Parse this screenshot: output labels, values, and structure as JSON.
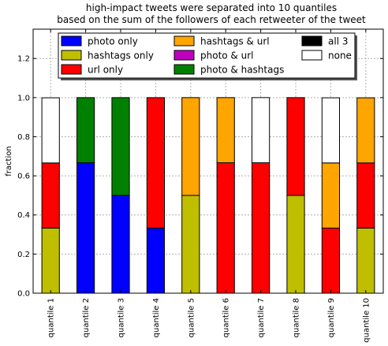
{
  "chart_data": {
    "type": "bar",
    "stacked": true,
    "title": "high-impact tweets were separated into 10 quantiles",
    "subtitle": "based on the sum of the followers of each retweeter of the tweet",
    "xlabel": "",
    "ylabel": "fraction",
    "ylim": [
      0,
      1.35
    ],
    "yticks": [
      0.0,
      0.2,
      0.4,
      0.6,
      0.8,
      1.0,
      1.2
    ],
    "grid": true,
    "legend_position": "top",
    "categories": [
      "quantile 1",
      "quantile 2",
      "quantile 3",
      "quantile 4",
      "quantile 5",
      "quantile 6",
      "quantile 7",
      "quantile 8",
      "quantile 9",
      "quantile 10"
    ],
    "series": [
      {
        "name": "photo only",
        "color": "#0000ff",
        "values": [
          0,
          0.667,
          0.5,
          0.333,
          0,
          0,
          0,
          0,
          0,
          0
        ]
      },
      {
        "name": "hashtags only",
        "color": "#bfbf00",
        "values": [
          0.333,
          0,
          0,
          0,
          0.5,
          0,
          0,
          0.5,
          0,
          0.333
        ]
      },
      {
        "name": "url only",
        "color": "#ff0000",
        "values": [
          0.333,
          0,
          0,
          0.667,
          0,
          0.667,
          0.667,
          0.5,
          0.333,
          0.333
        ]
      },
      {
        "name": "hashtags & url",
        "color": "#ffa500",
        "values": [
          0,
          0,
          0,
          0,
          0.5,
          0.333,
          0,
          0,
          0.333,
          0.333
        ]
      },
      {
        "name": "photo & url",
        "color": "#bf00bf",
        "values": [
          0,
          0,
          0,
          0,
          0,
          0,
          0,
          0,
          0,
          0
        ]
      },
      {
        "name": "photo & hashtags",
        "color": "#008000",
        "values": [
          0,
          0.333,
          0.5,
          0,
          0,
          0,
          0,
          0,
          0,
          0
        ]
      },
      {
        "name": "all 3",
        "color": "#000000",
        "values": [
          0,
          0,
          0,
          0,
          0,
          0,
          0,
          0,
          0,
          0
        ]
      },
      {
        "name": "none",
        "color": "#ffffff",
        "values": [
          0.333,
          0,
          0,
          0,
          0,
          0,
          0.333,
          0,
          0.333,
          0
        ]
      }
    ]
  }
}
